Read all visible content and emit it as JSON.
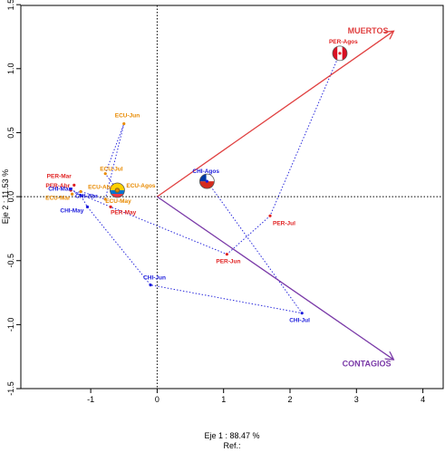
{
  "chart_data": {
    "type": "scatter",
    "title": "",
    "xlabel": "Eje 1 :  88.47 %",
    "ylabel": "Eje 2 :  11.53 %",
    "footnote": "Ref.:",
    "xlim": [
      -1.5,
      4
    ],
    "ylim": [
      -1.5,
      1.5
    ],
    "xticks": [
      -1,
      0,
      1,
      2,
      3,
      4
    ],
    "yticks": [
      -1.5,
      -1.0,
      -0.5,
      0.0,
      0.5,
      1.0,
      1.5
    ],
    "xtick_labels": [
      "-1",
      "0",
      "1",
      "2",
      "3",
      "4"
    ],
    "ytick_labels": [
      "-1.5",
      "-1.0",
      "-0.5",
      "0.0",
      "0.5",
      "1.0",
      "1.5"
    ],
    "colors": {
      "PER": "#e02020",
      "ECU": "#e88a00",
      "CHI": "#1a1adc",
      "muertos": "#e04040",
      "contagios": "#7a3aa8",
      "path": "#2a2adc"
    },
    "vectors": [
      {
        "label": "MUERTOS",
        "x": 3.55,
        "y": 1.29,
        "color_key": "muertos"
      },
      {
        "label": "CONTAGIOS",
        "x": 3.55,
        "y": -1.27,
        "color_key": "contagios"
      }
    ],
    "points": [
      {
        "label": "PER-Mar",
        "x": -1.25,
        "y": 0.09,
        "group": "PER"
      },
      {
        "label": "PER-Abr",
        "x": -1.3,
        "y": 0.05,
        "group": "PER"
      },
      {
        "label": "PER-May",
        "x": -0.7,
        "y": -0.08,
        "group": "PER"
      },
      {
        "label": "PER-Jun",
        "x": 1.05,
        "y": -0.45,
        "group": "PER"
      },
      {
        "label": "PER-Jul",
        "x": 1.7,
        "y": -0.15,
        "group": "PER"
      },
      {
        "label": "PER-Agos",
        "x": 2.75,
        "y": 1.12,
        "group": "PER"
      },
      {
        "label": "ECU-Mar",
        "x": -1.28,
        "y": 0.02,
        "group": "ECU"
      },
      {
        "label": "ECU-Abr",
        "x": -1.15,
        "y": 0.04,
        "group": "ECU"
      },
      {
        "label": "ECU-May",
        "x": -0.78,
        "y": -0.02,
        "group": "ECU"
      },
      {
        "label": "ECU-Jun",
        "x": -0.5,
        "y": 0.57,
        "group": "ECU"
      },
      {
        "label": "ECU-Jul",
        "x": -0.78,
        "y": 0.18,
        "group": "ECU"
      },
      {
        "label": "ECU-Agos",
        "x": -0.6,
        "y": 0.05,
        "group": "ECU"
      },
      {
        "label": "CHI-Mar",
        "x": -1.3,
        "y": 0.06,
        "group": "CHI"
      },
      {
        "label": "CHI-Abr",
        "x": -1.15,
        "y": 0.01,
        "group": "CHI"
      },
      {
        "label": "CHI-May",
        "x": -1.05,
        "y": -0.08,
        "group": "CHI"
      },
      {
        "label": "CHI-Jun",
        "x": -0.1,
        "y": -0.69,
        "group": "CHI"
      },
      {
        "label": "CHI-Jul",
        "x": 2.18,
        "y": -0.91,
        "group": "CHI"
      },
      {
        "label": "CHI-Agos",
        "x": 0.75,
        "y": 0.12,
        "group": "CHI"
      }
    ],
    "paths": [
      [
        "PER-Mar",
        "PER-Abr",
        "PER-May",
        "PER-Jun",
        "PER-Jul",
        "PER-Agos"
      ],
      [
        "ECU-Mar",
        "ECU-Abr",
        "ECU-May",
        "ECU-Jun",
        "ECU-Jul",
        "ECU-Agos"
      ],
      [
        "CHI-Mar",
        "CHI-Abr",
        "CHI-May",
        "CHI-Jun",
        "CHI-Jul",
        "CHI-Agos"
      ]
    ],
    "flag_markers": [
      {
        "at": "PER-Agos",
        "flag": "peru-flag"
      },
      {
        "at": "CHI-Agos",
        "flag": "chile-flag"
      },
      {
        "at": "ECU-Agos",
        "flag": "ecuador-flag"
      }
    ],
    "grid": false,
    "reference_lines": {
      "x": 0,
      "y": 0
    }
  }
}
